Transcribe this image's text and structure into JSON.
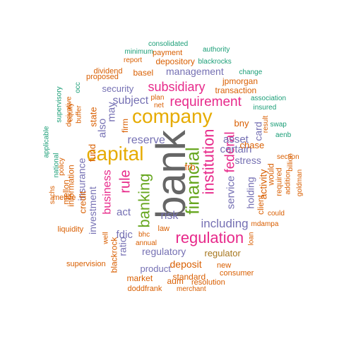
{
  "palette": {
    "gray": "#666666",
    "orange": "#D95F02",
    "magenta": "#E7298A",
    "purple": "#7570B3",
    "teal": "#1B9E77",
    "green": "#66A61E",
    "gold": "#E6AB02",
    "brown": "#A6761D"
  },
  "words": [
    {
      "text": "bank",
      "color": "gray",
      "orientation": "vertical"
    },
    {
      "text": "company",
      "color": "gold",
      "orientation": "horizontal"
    },
    {
      "text": "capital",
      "color": "gold",
      "orientation": "horizontal"
    },
    {
      "text": "financial",
      "color": "green",
      "orientation": "vertical"
    },
    {
      "text": "regulation",
      "color": "magenta",
      "orientation": "horizontal"
    },
    {
      "text": "banking",
      "color": "green",
      "orientation": "vertical"
    },
    {
      "text": "institution",
      "color": "magenta",
      "orientation": "vertical"
    },
    {
      "text": "requirement",
      "color": "magenta",
      "orientation": "horizontal"
    },
    {
      "text": "federal",
      "color": "magenta",
      "orientation": "vertical"
    },
    {
      "text": "subsidiary",
      "color": "magenta",
      "orientation": "horizontal"
    },
    {
      "text": "rule",
      "color": "magenta",
      "orientation": "vertical"
    },
    {
      "text": "including",
      "color": "purple",
      "orientation": "horizontal"
    },
    {
      "text": "reserve",
      "color": "purple",
      "orientation": "horizontal"
    },
    {
      "text": "business",
      "color": "magenta",
      "orientation": "vertical"
    },
    {
      "text": "risk",
      "color": "purple",
      "orientation": "horizontal"
    },
    {
      "text": "stress",
      "color": "purple",
      "orientation": "horizontal"
    },
    {
      "text": "certain",
      "color": "purple",
      "orientation": "horizontal"
    },
    {
      "text": "asset",
      "color": "purple",
      "orientation": "horizontal"
    },
    {
      "text": "subject",
      "color": "purple",
      "orientation": "horizontal"
    },
    {
      "text": "service",
      "color": "purple",
      "orientation": "vertical"
    },
    {
      "text": "holding",
      "color": "purple",
      "orientation": "vertical"
    },
    {
      "text": "insurance",
      "color": "purple",
      "orientation": "vertical"
    },
    {
      "text": "investment",
      "color": "purple",
      "orientation": "vertical"
    },
    {
      "text": "regulatory",
      "color": "purple",
      "orientation": "horizontal"
    },
    {
      "text": "regulator",
      "color": "brown",
      "orientation": "horizontal"
    },
    {
      "text": "management",
      "color": "purple",
      "orientation": "horizontal"
    },
    {
      "text": "security",
      "color": "purple",
      "orientation": "horizontal"
    },
    {
      "text": "product",
      "color": "purple",
      "orientation": "horizontal"
    },
    {
      "text": "deposit",
      "color": "orange",
      "orientation": "horizontal"
    },
    {
      "text": "act",
      "color": "purple",
      "orientation": "horizontal"
    },
    {
      "text": "may",
      "color": "purple",
      "orientation": "vertical"
    },
    {
      "text": "also",
      "color": "purple",
      "orientation": "vertical"
    },
    {
      "text": "fdic",
      "color": "purple",
      "orientation": "horizontal"
    },
    {
      "text": "frb",
      "color": "orange",
      "orientation": "horizontal"
    },
    {
      "text": "chase",
      "color": "orange",
      "orientation": "horizontal"
    },
    {
      "text": "bny",
      "color": "orange",
      "orientation": "horizontal"
    },
    {
      "text": "state",
      "color": "orange",
      "orientation": "vertical"
    },
    {
      "text": "fund",
      "color": "orange",
      "orientation": "vertical"
    },
    {
      "text": "credit",
      "color": "orange",
      "orientation": "vertical"
    },
    {
      "text": "card",
      "color": "purple",
      "orientation": "vertical"
    },
    {
      "text": "activity",
      "color": "orange",
      "orientation": "vertical"
    },
    {
      "text": "would",
      "color": "orange",
      "orientation": "vertical"
    },
    {
      "text": "client",
      "color": "orange",
      "orientation": "vertical"
    },
    {
      "text": "loan",
      "color": "orange",
      "orientation": "vertical"
    },
    {
      "text": "blackrock",
      "color": "orange",
      "orientation": "vertical"
    },
    {
      "text": "ratio",
      "color": "purple",
      "orientation": "vertical"
    },
    {
      "text": "firm",
      "color": "orange",
      "orientation": "vertical"
    },
    {
      "text": "information",
      "color": "orange",
      "orientation": "vertical"
    },
    {
      "text": "mellon",
      "color": "orange",
      "orientation": "vertical"
    },
    {
      "text": "depository",
      "color": "orange",
      "orientation": "horizontal"
    },
    {
      "text": "basel",
      "color": "orange",
      "orientation": "horizontal"
    },
    {
      "text": "jpmorgan",
      "color": "orange",
      "orientation": "horizontal"
    },
    {
      "text": "transaction",
      "color": "orange",
      "orientation": "horizontal"
    },
    {
      "text": "proposed",
      "color": "orange",
      "orientation": "horizontal"
    },
    {
      "text": "market",
      "color": "orange",
      "orientation": "horizontal"
    },
    {
      "text": "doddfrank",
      "color": "orange",
      "orientation": "horizontal"
    },
    {
      "text": "standard",
      "color": "orange",
      "orientation": "horizontal"
    },
    {
      "text": "aum",
      "color": "orange",
      "orientation": "horizontal"
    },
    {
      "text": "law",
      "color": "orange",
      "orientation": "horizontal"
    },
    {
      "text": "resolution",
      "color": "orange",
      "orientation": "horizontal"
    },
    {
      "text": "merchant",
      "color": "orange",
      "orientation": "horizontal"
    },
    {
      "text": "consumer",
      "color": "orange",
      "orientation": "horizontal"
    },
    {
      "text": "new",
      "color": "orange",
      "orientation": "horizontal"
    },
    {
      "text": "supervision",
      "color": "orange",
      "orientation": "horizontal"
    },
    {
      "text": "annual",
      "color": "orange",
      "orientation": "horizontal"
    },
    {
      "text": "bhc",
      "color": "orange",
      "orientation": "horizontal"
    },
    {
      "text": "well",
      "color": "orange",
      "orientation": "vertical"
    },
    {
      "text": "liquidity",
      "color": "orange",
      "orientation": "horizontal"
    },
    {
      "text": "metlife",
      "color": "orange",
      "orientation": "horizontal"
    },
    {
      "text": "sachs",
      "color": "orange",
      "orientation": "vertical"
    },
    {
      "text": "policy",
      "color": "orange",
      "orientation": "vertical"
    },
    {
      "text": "derivative",
      "color": "orange",
      "orientation": "vertical"
    },
    {
      "text": "equity",
      "color": "orange",
      "orientation": "vertical"
    },
    {
      "text": "buffer",
      "color": "orange",
      "orientation": "vertical"
    },
    {
      "text": "dividend",
      "color": "orange",
      "orientation": "horizontal"
    },
    {
      "text": "report",
      "color": "orange",
      "orientation": "horizontal"
    },
    {
      "text": "payment",
      "color": "orange",
      "orientation": "horizontal"
    },
    {
      "text": "plan",
      "color": "orange",
      "orientation": "horizontal"
    },
    {
      "text": "net",
      "color": "orange",
      "orientation": "horizontal"
    },
    {
      "text": "required",
      "color": "orange",
      "orientation": "vertical"
    },
    {
      "text": "section",
      "color": "orange",
      "orientation": "horizontal"
    },
    {
      "text": "addition",
      "color": "orange",
      "orientation": "vertical"
    },
    {
      "text": "billion",
      "color": "orange",
      "orientation": "vertical"
    },
    {
      "text": "result",
      "color": "orange",
      "orientation": "vertical"
    },
    {
      "text": "could",
      "color": "orange",
      "orientation": "horizontal"
    },
    {
      "text": "mdampa",
      "color": "orange",
      "orientation": "horizontal"
    },
    {
      "text": "goldman",
      "color": "orange",
      "orientation": "vertical"
    },
    {
      "text": "consolidated",
      "color": "teal",
      "orientation": "horizontal"
    },
    {
      "text": "minimum",
      "color": "teal",
      "orientation": "horizontal"
    },
    {
      "text": "authority",
      "color": "teal",
      "orientation": "horizontal"
    },
    {
      "text": "blackrocks",
      "color": "teal",
      "orientation": "horizontal"
    },
    {
      "text": "change",
      "color": "teal",
      "orientation": "horizontal"
    },
    {
      "text": "association",
      "color": "teal",
      "orientation": "horizontal"
    },
    {
      "text": "insured",
      "color": "teal",
      "orientation": "horizontal"
    },
    {
      "text": "swap",
      "color": "teal",
      "orientation": "horizontal"
    },
    {
      "text": "aenb",
      "color": "teal",
      "orientation": "horizontal"
    },
    {
      "text": "occ",
      "color": "teal",
      "orientation": "vertical"
    },
    {
      "text": "supervisory",
      "color": "teal",
      "orientation": "vertical"
    },
    {
      "text": "national",
      "color": "teal",
      "orientation": "vertical"
    },
    {
      "text": "applicable",
      "color": "teal",
      "orientation": "vertical"
    }
  ]
}
